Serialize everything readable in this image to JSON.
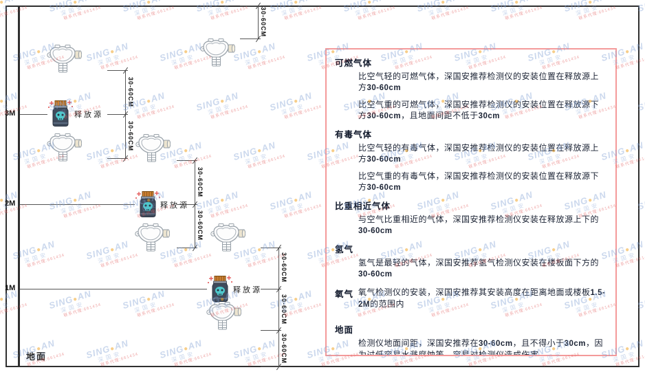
{
  "watermark": {
    "brand_left": "SING",
    "dot": "●",
    "brand_right": "AN",
    "subtitle": "深国安",
    "contact": "联系代理:661434",
    "blue": "#82a3d4",
    "red": "#e25c5c",
    "dot_color": "#f0a52a"
  },
  "diagram": {
    "levels": [
      {
        "label": "3M"
      },
      {
        "label": "2M"
      },
      {
        "label": "1M"
      }
    ],
    "ground_label": "地面",
    "source_label": "释放源",
    "dim_label": "30-60CM"
  },
  "panel": {
    "border_color": "#f49a9a",
    "sections": [
      {
        "heading": "可燃气体",
        "inline_first": false,
        "gap": false,
        "paragraphs": [
          "比空气轻的可燃气体，深国安推荐检测仪的安装位置在释放源上方30-60cm",
          "比空气重的可燃气体，深国安推荐检测仪的安装位置在释放源下方30-60cm，且地面间距不低于30cm"
        ]
      },
      {
        "heading": "有毒气体",
        "inline_first": false,
        "gap": false,
        "paragraphs": [
          "比空气轻的有毒气体，深国安推荐检测仪的安装位置在释放源上方30-60cm",
          "比空气重的有毒气体，深国安推荐检测仪的安装位置在释放源下方30-60cm"
        ]
      },
      {
        "heading": "比重相近气体",
        "inline_first": false,
        "gap": false,
        "paragraphs": [
          "与空气比重相近的气体，深国安推荐检测仪安装在释放源上下的30-60cm"
        ]
      },
      {
        "heading": "氢气",
        "inline_first": false,
        "gap": false,
        "paragraphs": [
          "氢气是最轻的气体，深国安推荐氢气检测仪安装在楼板面下方的30-60cm"
        ]
      },
      {
        "heading": "氧气",
        "inline_first": true,
        "gap": true,
        "paragraphs": [
          "氧气检测仪的安装，深国安推荐其安装高度在距离地面或楼板1.5-2M的范围内"
        ]
      },
      {
        "heading": "地面",
        "inline_first": false,
        "gap": true,
        "paragraphs": [
          "检测仪地面间距，深国安推荐在30-60cm，且不得小于30cm，因为过低容易水溅腐蚀等，容易对检测仪造成伤害"
        ]
      }
    ]
  },
  "colors": {
    "frame": "#2f2f2f",
    "dim_line": "#555555",
    "source_body": "#3f4b5c",
    "source_cap": "#cd7f32",
    "source_face": "#4fc8cc",
    "sparkle": "#e04848",
    "detector_stroke": "#97a0a8"
  }
}
